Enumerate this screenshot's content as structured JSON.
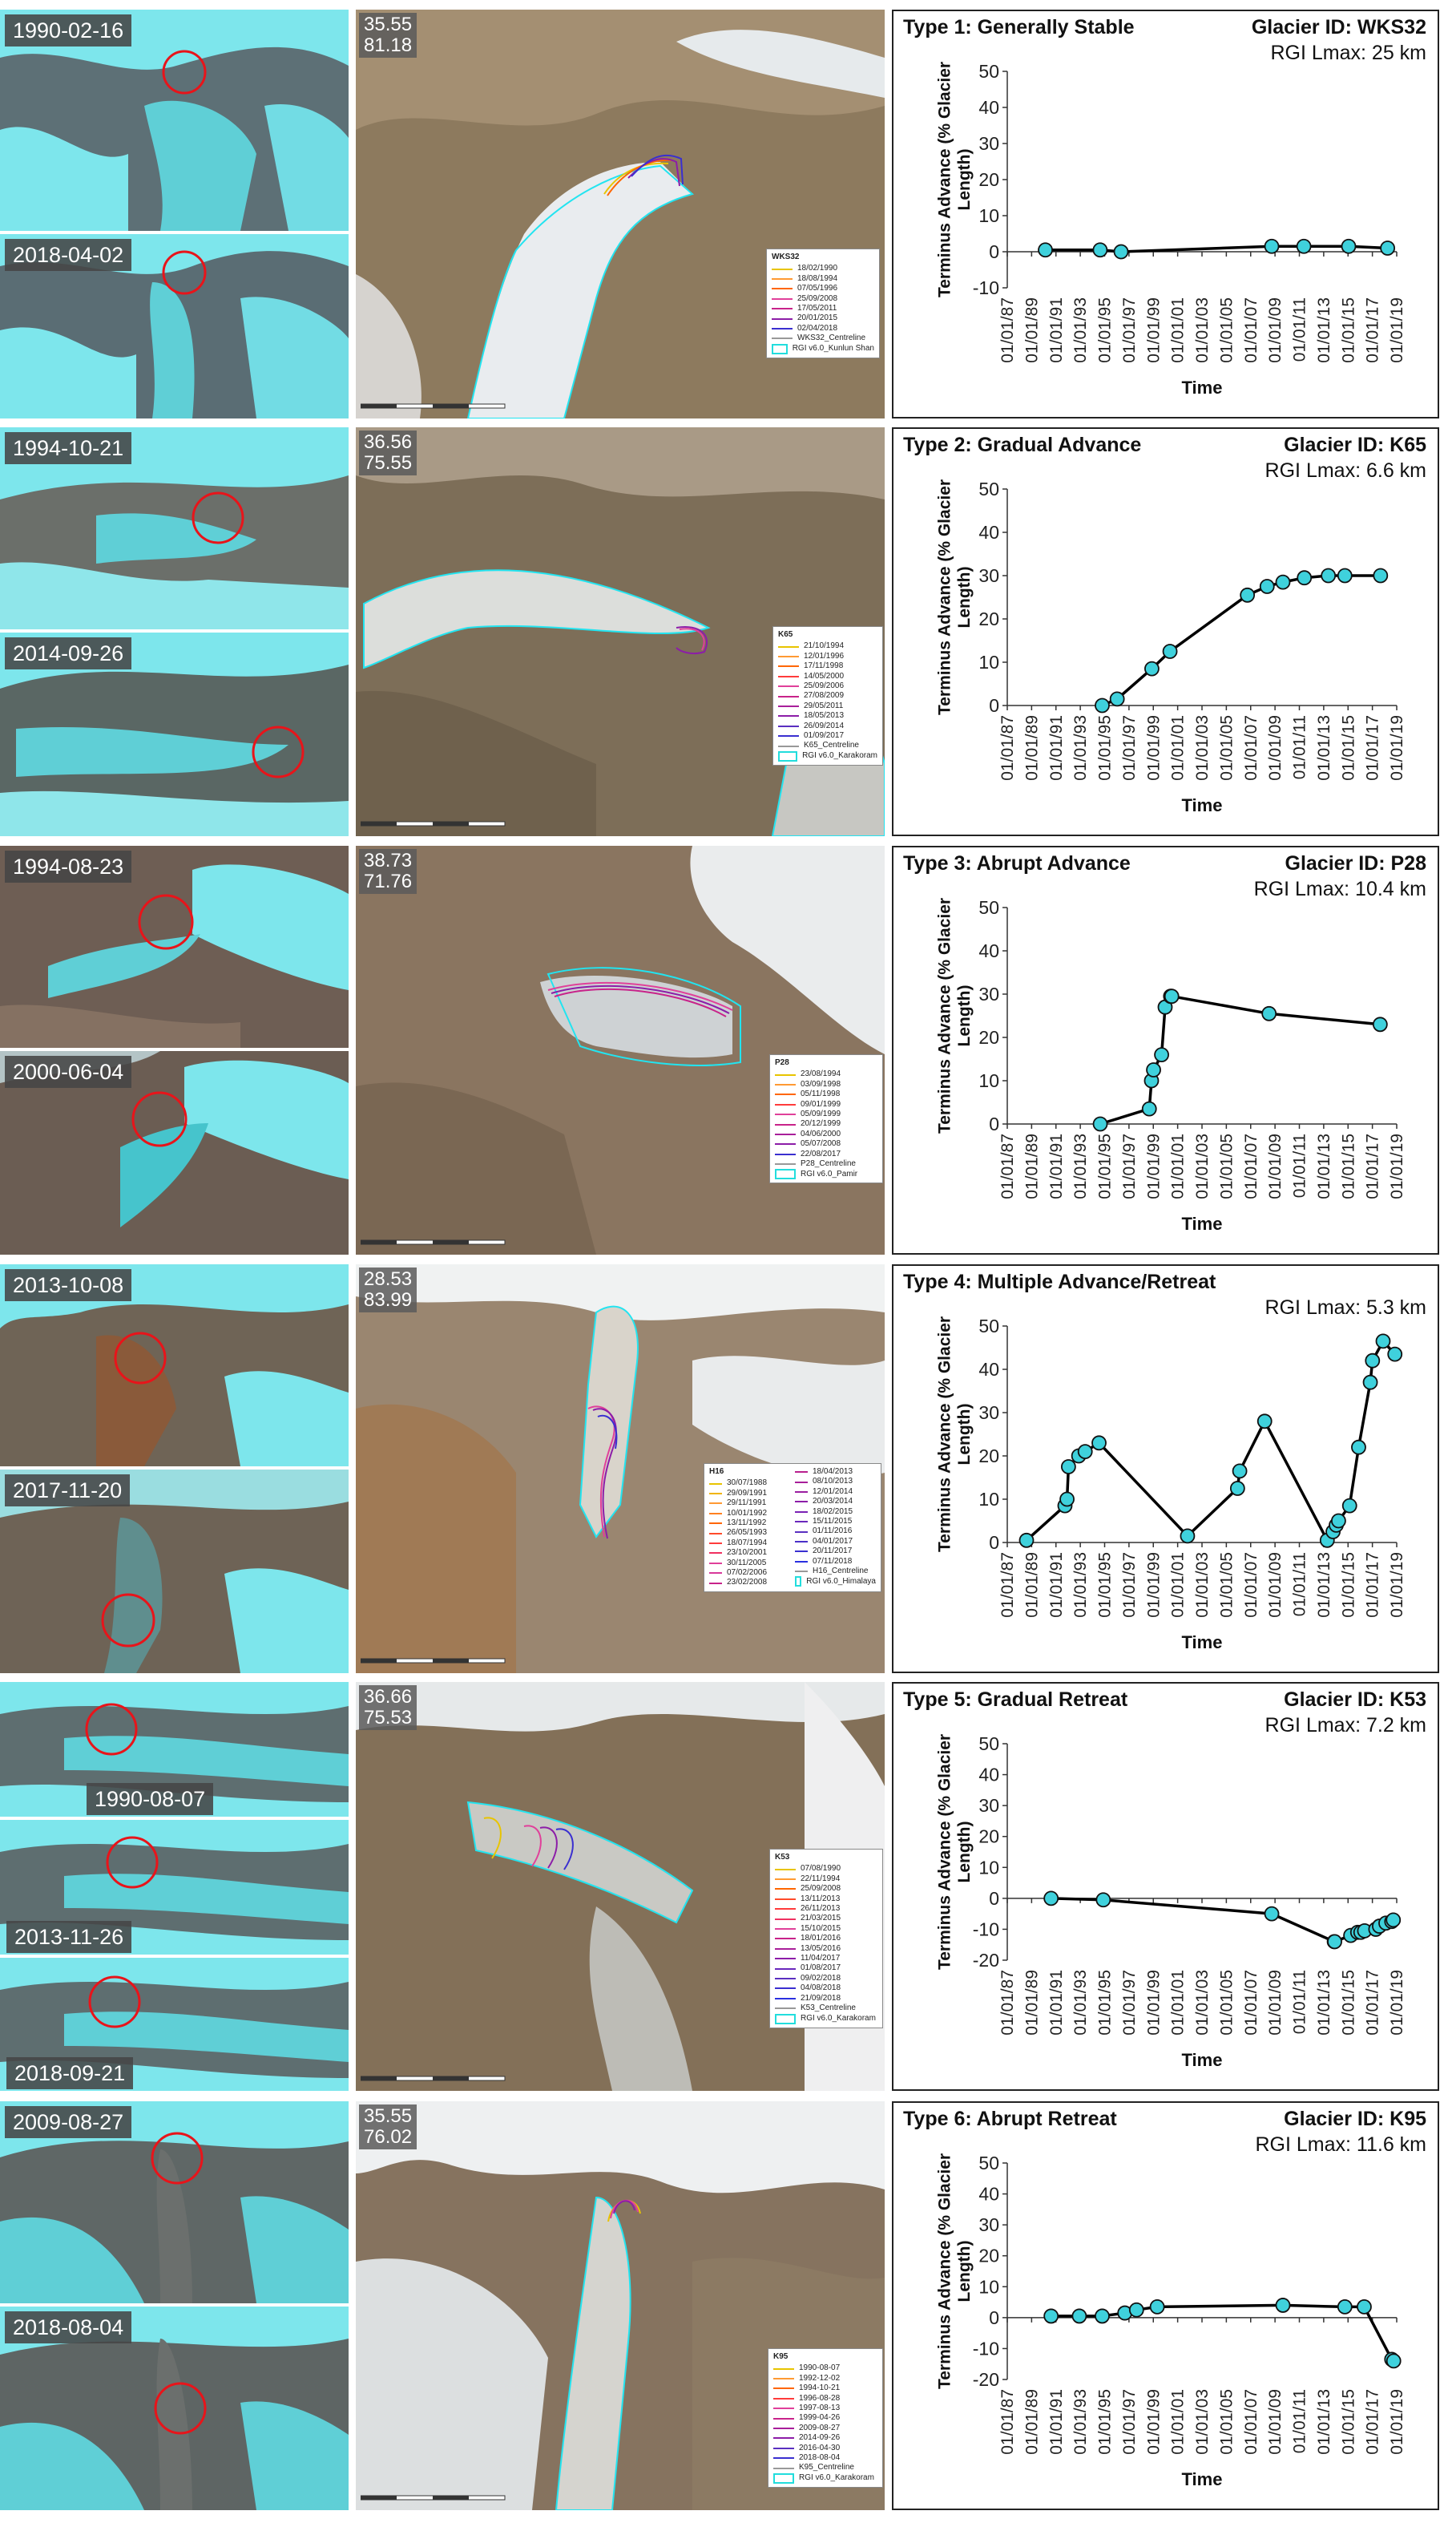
{
  "rows": [
    {
      "thumbs": [
        "1990-02-16",
        "2018-04-02"
      ],
      "coords": "35.55\n81.18",
      "legend_title": "WKS32",
      "legend_items": [
        "18/02/1990",
        "18/08/1994",
        "07/05/1996",
        "25/09/2008",
        "17/05/2011",
        "20/01/2015",
        "02/04/2018"
      ],
      "legend_centreline": "WKS32_Centreline",
      "legend_rgi": "RGI v6.0_Kunlun Shan",
      "chart_title": "Type 1: Generally Stable",
      "glacier_id": "Glacier ID: WKS32",
      "lmax": "RGI Lmax: 25 km"
    },
    {
      "thumbs": [
        "1994-10-21",
        "2014-09-26"
      ],
      "coords": "36.56\n75.55",
      "legend_title": "K65",
      "legend_items": [
        "21/10/1994",
        "12/01/1996",
        "17/11/1998",
        "14/05/2000",
        "25/09/2006",
        "27/08/2009",
        "29/05/2011",
        "18/05/2013",
        "26/09/2014",
        "01/09/2017"
      ],
      "legend_centreline": "K65_Centreline",
      "legend_rgi": "RGI v6.0_Karakoram",
      "chart_title": "Type 2: Gradual Advance",
      "glacier_id": "Glacier ID: K65",
      "lmax": "RGI Lmax: 6.6 km"
    },
    {
      "thumbs": [
        "1994-08-23",
        "2000-06-04"
      ],
      "coords": "38.73\n71.76",
      "legend_title": "P28",
      "legend_items": [
        "23/08/1994",
        "03/09/1998",
        "05/11/1998",
        "09/01/1999",
        "05/09/1999",
        "20/12/1999",
        "04/06/2000",
        "05/07/2008",
        "22/08/2017"
      ],
      "legend_centreline": "P28_Centreline",
      "legend_rgi": "RGI v6.0_Pamir",
      "chart_title": "Type 3: Abrupt Advance",
      "glacier_id": "Glacier ID: P28",
      "lmax": "RGI Lmax: 10.4 km"
    },
    {
      "thumbs": [
        "2013-10-08",
        "2017-11-20"
      ],
      "coords": "28.53\n83.99",
      "legend_title": "H16",
      "legend_items": [
        "30/07/1988",
        "29/09/1991",
        "29/11/1991",
        "10/01/1992",
        "13/11/1992",
        "26/05/1993",
        "18/07/1994",
        "23/10/2001",
        "30/11/2005",
        "07/02/2006",
        "23/02/2008",
        "18/04/2013",
        "08/10/2013",
        "12/01/2014",
        "20/03/2014",
        "18/02/2015",
        "15/11/2015",
        "01/11/2016",
        "04/01/2017",
        "20/11/2017",
        "07/11/2018"
      ],
      "legend_centreline": "H16_Centreline",
      "legend_rgi": "RGI v6.0_Himalaya",
      "chart_title": "Type 4: Multiple Advance/Retreat",
      "glacier_id": "Glacier ID: H16",
      "lmax": "RGI Lmax: 5.3 km"
    },
    {
      "thumbs": [
        "1990-08-07",
        "2013-11-26",
        "2018-09-21"
      ],
      "coords": "36.66\n75.53",
      "legend_title": "K53",
      "legend_items": [
        "07/08/1990",
        "22/11/1994",
        "25/09/2008",
        "13/11/2013",
        "26/11/2013",
        "21/03/2015",
        "15/10/2015",
        "18/01/2016",
        "13/05/2016",
        "11/04/2017",
        "01/08/2017",
        "09/02/2018",
        "04/08/2018",
        "21/09/2018"
      ],
      "legend_centreline": "K53_Centreline",
      "legend_rgi": "RGI v6.0_Karakoram",
      "chart_title": "Type 5: Gradual Retreat",
      "glacier_id": "Glacier ID: K53",
      "lmax": "RGI Lmax: 7.2 km"
    },
    {
      "thumbs": [
        "2009-08-27",
        "2018-08-04"
      ],
      "coords": "35.55\n76.02",
      "legend_title": "K95",
      "legend_items": [
        "1990-08-07",
        "1992-12-02",
        "1994-10-21",
        "1996-08-28",
        "1997-08-13",
        "1999-04-26",
        "2009-08-27",
        "2014-09-26",
        "2016-04-30",
        "2018-08-04"
      ],
      "legend_centreline": "K95_Centreline",
      "legend_rgi": "RGI v6.0_Karakoram",
      "chart_title": "Type 6: Abrupt Retreat",
      "glacier_id": "Glacier ID: K95",
      "lmax": "RGI Lmax: 11.6 km"
    }
  ],
  "legend_colors": [
    "#e8c400",
    "#ff9a33",
    "#ff6600",
    "#e0409a",
    "#c8238a",
    "#8c1da8",
    "#3a2fd0"
  ],
  "colors": {
    "marker": "#3fd1dc",
    "line": "#000000",
    "rgi_outline": "#22e4f0",
    "circle": "#e8141a"
  },
  "chart_data": [
    {
      "type": "line",
      "xlabel": "Time",
      "ylabel": "Terminus Advance (% Glacier Length)",
      "ylim": [
        -10,
        50
      ],
      "yticks": [
        -10,
        0,
        10,
        20,
        30,
        40,
        50
      ],
      "xlim": [
        1987.0,
        2019.0
      ],
      "xticks": [
        "01/01/87",
        "01/01/89",
        "01/01/91",
        "01/01/93",
        "01/01/95",
        "01/01/97",
        "01/01/99",
        "01/01/01",
        "01/01/03",
        "01/01/05",
        "01/01/07",
        "01/01/09",
        "01/01/11",
        "01/01/13",
        "01/01/15",
        "01/01/17",
        "01/01/19"
      ],
      "x": [
        1990.13,
        1994.63,
        1996.35,
        2008.73,
        2011.37,
        2015.05,
        2018.25
      ],
      "y": [
        0.5,
        0.5,
        0,
        1.5,
        1.5,
        1.5,
        1
      ]
    },
    {
      "type": "line",
      "xlabel": "Time",
      "ylabel": "Terminus Advance (% Glacier Length)",
      "ylim": [
        0,
        50
      ],
      "yticks": [
        0,
        10,
        20,
        30,
        40,
        50
      ],
      "xlim": [
        1987.0,
        2019.0
      ],
      "xticks": [
        "01/01/87",
        "01/01/89",
        "01/01/91",
        "01/01/93",
        "01/01/95",
        "01/01/97",
        "01/01/99",
        "01/01/01",
        "01/01/03",
        "01/01/05",
        "01/01/07",
        "01/01/09",
        "01/01/11",
        "01/01/13",
        "01/01/15",
        "01/01/17",
        "01/01/19"
      ],
      "x": [
        1994.8,
        1996.03,
        1998.88,
        2000.37,
        2006.73,
        2008.35,
        2009.65,
        2011.41,
        2013.38,
        2014.74,
        2017.67
      ],
      "y": [
        0,
        1.5,
        8.5,
        12.5,
        25.5,
        27.5,
        28.5,
        29.5,
        30,
        30,
        30
      ]
    },
    {
      "type": "line",
      "xlabel": "Time",
      "ylabel": "Terminus Advance (% Glacier Length)",
      "ylim": [
        0,
        50
      ],
      "yticks": [
        0,
        10,
        20,
        30,
        40,
        50
      ],
      "xlim": [
        1987.0,
        2019.0
      ],
      "xticks": [
        "01/01/87",
        "01/01/89",
        "01/01/91",
        "01/01/93",
        "01/01/95",
        "01/01/97",
        "01/01/99",
        "01/01/01",
        "01/01/03",
        "01/01/05",
        "01/01/07",
        "01/01/09",
        "01/01/11",
        "01/01/13",
        "01/01/15",
        "01/01/17",
        "01/01/19"
      ],
      "x": [
        1994.64,
        1998.67,
        1998.85,
        1999.02,
        1999.68,
        1999.97,
        2000.42,
        2000.51,
        2008.51,
        2017.64
      ],
      "y": [
        0,
        3.5,
        10,
        12.5,
        16,
        27,
        29.5,
        29.5,
        25.5,
        23
      ]
    },
    {
      "type": "line",
      "xlabel": "Time",
      "ylabel": "Terminus Advance (% Glacier Length)",
      "ylim": [
        0,
        50
      ],
      "yticks": [
        0,
        10,
        20,
        30,
        40,
        50
      ],
      "xlim": [
        1987.0,
        2019.0
      ],
      "xticks": [
        "01/01/87",
        "01/01/89",
        "01/01/91",
        "01/01/93",
        "01/01/95",
        "01/01/97",
        "01/01/99",
        "01/01/01",
        "01/01/03",
        "01/01/05",
        "01/01/07",
        "01/01/09",
        "01/01/11",
        "01/01/13",
        "01/01/15",
        "01/01/17",
        "01/01/19"
      ],
      "x": [
        1988.58,
        1991.74,
        1991.91,
        1992.03,
        1992.87,
        1993.4,
        1994.54,
        2001.81,
        2005.92,
        2006.1,
        2008.15,
        2013.29,
        2013.77,
        2014.03,
        2014.22,
        2015.13,
        2015.87,
        2016.83,
        2017.01,
        2017.88,
        2018.85
      ],
      "y": [
        0.5,
        8.5,
        10,
        17.5,
        20,
        21,
        23,
        1.5,
        12.5,
        16.5,
        28,
        0.5,
        2.5,
        4,
        5,
        8.5,
        22,
        37,
        42,
        46.5,
        43.5
      ]
    },
    {
      "type": "line",
      "xlabel": "Time",
      "ylabel": "Terminus Advance (% Glacier Length)",
      "ylim": [
        -20,
        50
      ],
      "yticks": [
        -20,
        -10,
        0,
        10,
        20,
        30,
        40,
        50
      ],
      "xlim": [
        1987.0,
        2019.0
      ],
      "xticks": [
        "01/01/87",
        "01/01/89",
        "01/01/91",
        "01/01/93",
        "01/01/95",
        "01/01/97",
        "01/01/99",
        "01/01/01",
        "01/01/03",
        "01/01/05",
        "01/01/07",
        "01/01/09",
        "01/01/11",
        "01/01/13",
        "01/01/15",
        "01/01/17",
        "01/01/19"
      ],
      "x": [
        1990.6,
        1994.89,
        2008.73,
        2013.87,
        2013.9,
        2015.22,
        2015.79,
        2016.05,
        2016.36,
        2017.28,
        2017.58,
        2018.11,
        2018.59,
        2018.72
      ],
      "y": [
        0,
        -0.5,
        -5,
        -14,
        -14,
        -12,
        -11,
        -11,
        -10.5,
        -10,
        -9,
        -8,
        -7.5,
        -7
      ]
    },
    {
      "type": "line",
      "xlabel": "Time",
      "ylabel": "Terminus Advance (% Glacier Length)",
      "ylim": [
        -20,
        50
      ],
      "yticks": [
        -20,
        -10,
        0,
        10,
        20,
        30,
        40,
        50
      ],
      "xlim": [
        1987.0,
        2019.0
      ],
      "xticks": [
        "01/01/87",
        "01/01/89",
        "01/01/91",
        "01/01/93",
        "01/01/95",
        "01/01/97",
        "01/01/99",
        "01/01/01",
        "01/01/03",
        "01/01/05",
        "01/01/07",
        "01/01/09",
        "01/01/11",
        "01/01/13",
        "01/01/15",
        "01/01/17",
        "01/01/19"
      ],
      "x": [
        1990.6,
        1992.92,
        1994.8,
        1996.66,
        1997.62,
        1999.32,
        2009.65,
        2014.74,
        2016.33,
        2018.59,
        2018.75
      ],
      "y": [
        0.5,
        0.5,
        0.5,
        1.5,
        2.5,
        3.5,
        4,
        3.5,
        3.5,
        -13.5,
        -14
      ]
    }
  ]
}
